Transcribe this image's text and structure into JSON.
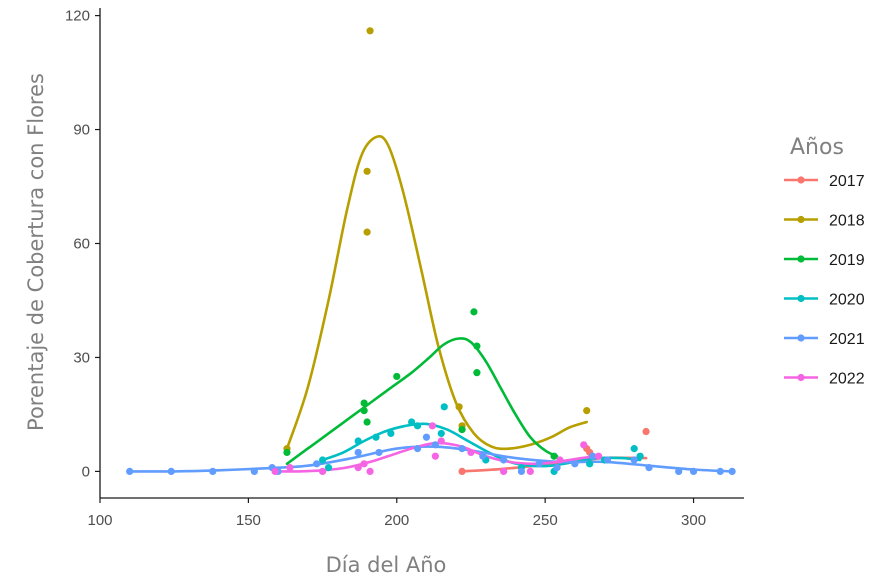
{
  "chart_data": {
    "type": "scatter",
    "title": "",
    "xlabel": "Día del Año",
    "ylabel": "Porentaje de Cobertura con Flores",
    "xlim": [
      100,
      317
    ],
    "ylim": [
      -7,
      122
    ],
    "xticks": [
      100,
      150,
      200,
      250,
      300
    ],
    "yticks": [
      0,
      30,
      60,
      90,
      120
    ],
    "grid": false,
    "legend": {
      "title": "Años",
      "position": "right"
    },
    "series": [
      {
        "name": "2017",
        "color": "#F8766D",
        "points": [
          [
            222,
            0
          ],
          [
            264,
            6
          ],
          [
            265,
            5
          ],
          [
            284,
            10.5
          ]
        ],
        "smooth": [
          [
            222,
            0
          ],
          [
            235,
            0.6
          ],
          [
            250,
            1.8
          ],
          [
            263,
            3
          ],
          [
            272,
            3.6
          ],
          [
            284,
            3.5
          ]
        ]
      },
      {
        "name": "2018",
        "color": "#B79F00",
        "points": [
          [
            163,
            6
          ],
          [
            190,
            79
          ],
          [
            190,
            63
          ],
          [
            191,
            116
          ],
          [
            221,
            17
          ],
          [
            222,
            12
          ],
          [
            264,
            16
          ]
        ],
        "smooth": [
          [
            163,
            6
          ],
          [
            170,
            22
          ],
          [
            177,
            45
          ],
          [
            183,
            68
          ],
          [
            188,
            83
          ],
          [
            193,
            88
          ],
          [
            197,
            86
          ],
          [
            202,
            74
          ],
          [
            208,
            54
          ],
          [
            214,
            33
          ],
          [
            220,
            18
          ],
          [
            226,
            10
          ],
          [
            232,
            6.5
          ],
          [
            238,
            6
          ],
          [
            245,
            7
          ],
          [
            252,
            9
          ],
          [
            258,
            11.5
          ],
          [
            264,
            13
          ]
        ]
      },
      {
        "name": "2019",
        "color": "#00BA38",
        "points": [
          [
            163,
            5
          ],
          [
            189,
            18
          ],
          [
            189,
            16
          ],
          [
            190,
            13
          ],
          [
            200,
            25
          ],
          [
            222,
            11
          ],
          [
            226,
            42
          ],
          [
            227,
            33
          ],
          [
            227,
            26
          ],
          [
            253,
            4
          ]
        ],
        "smooth": [
          [
            163,
            2
          ],
          [
            170,
            6
          ],
          [
            177,
            10
          ],
          [
            184,
            14
          ],
          [
            191,
            18
          ],
          [
            198,
            22
          ],
          [
            205,
            26
          ],
          [
            211,
            30
          ],
          [
            216,
            33.5
          ],
          [
            221,
            35
          ],
          [
            225,
            34
          ],
          [
            230,
            29
          ],
          [
            235,
            22
          ],
          [
            240,
            15
          ],
          [
            245,
            9
          ],
          [
            250,
            5.5
          ],
          [
            254,
            4
          ]
        ]
      },
      {
        "name": "2020",
        "color": "#00BFC4",
        "points": [
          [
            175,
            3
          ],
          [
            177,
            1
          ],
          [
            187,
            8
          ],
          [
            193,
            9
          ],
          [
            198,
            10
          ],
          [
            205,
            13
          ],
          [
            207,
            12
          ],
          [
            215,
            10
          ],
          [
            216,
            17
          ],
          [
            230,
            3
          ],
          [
            242,
            1
          ],
          [
            253,
            0
          ],
          [
            265,
            2
          ],
          [
            270,
            3
          ],
          [
            280,
            6
          ],
          [
            282,
            4
          ]
        ],
        "smooth": [
          [
            175,
            3
          ],
          [
            182,
            5
          ],
          [
            189,
            8
          ],
          [
            196,
            10.5
          ],
          [
            203,
            12
          ],
          [
            210,
            12.5
          ],
          [
            217,
            11
          ],
          [
            224,
            8
          ],
          [
            231,
            5
          ],
          [
            238,
            2.5
          ],
          [
            245,
            1.5
          ],
          [
            252,
            1.5
          ],
          [
            260,
            2.5
          ],
          [
            268,
            3.5
          ],
          [
            276,
            3.5
          ],
          [
            282,
            3
          ]
        ]
      },
      {
        "name": "2021",
        "color": "#619CFF",
        "points": [
          [
            110,
            0
          ],
          [
            124,
            0
          ],
          [
            138,
            0
          ],
          [
            152,
            0
          ],
          [
            158,
            1
          ],
          [
            160,
            0
          ],
          [
            173,
            2
          ],
          [
            187,
            5
          ],
          [
            194,
            5
          ],
          [
            207,
            6
          ],
          [
            210,
            9
          ],
          [
            213,
            7
          ],
          [
            222,
            6
          ],
          [
            229,
            4
          ],
          [
            236,
            3
          ],
          [
            242,
            0
          ],
          [
            248,
            2
          ],
          [
            254,
            1
          ],
          [
            260,
            2
          ],
          [
            266,
            4
          ],
          [
            271,
            3
          ],
          [
            280,
            3
          ],
          [
            285,
            1
          ],
          [
            295,
            0
          ],
          [
            300,
            0
          ],
          [
            309,
            0
          ],
          [
            313,
            0
          ]
        ],
        "smooth": [
          [
            110,
            0
          ],
          [
            125,
            0
          ],
          [
            140,
            0.3
          ],
          [
            155,
            0.8
          ],
          [
            170,
            1.5
          ],
          [
            185,
            3.5
          ],
          [
            200,
            6
          ],
          [
            213,
            6.5
          ],
          [
            225,
            5.5
          ],
          [
            240,
            3.5
          ],
          [
            255,
            2.5
          ],
          [
            270,
            2.5
          ],
          [
            285,
            1.5
          ],
          [
            300,
            0.5
          ],
          [
            313,
            0
          ]
        ]
      },
      {
        "name": "2022",
        "color": "#F564E3",
        "points": [
          [
            159,
            0
          ],
          [
            164,
            1
          ],
          [
            175,
            0
          ],
          [
            187,
            1
          ],
          [
            189,
            2
          ],
          [
            191,
            0
          ],
          [
            212,
            12
          ],
          [
            213,
            4
          ],
          [
            215,
            8
          ],
          [
            225,
            5
          ],
          [
            236,
            0
          ],
          [
            245,
            0
          ],
          [
            255,
            3
          ],
          [
            263,
            7
          ],
          [
            268,
            4
          ]
        ],
        "smooth": [
          [
            159,
            0
          ],
          [
            167,
            0
          ],
          [
            175,
            0.3
          ],
          [
            183,
            1
          ],
          [
            191,
            2.5
          ],
          [
            199,
            4.5
          ],
          [
            207,
            6.5
          ],
          [
            214,
            7.5
          ],
          [
            222,
            6.5
          ],
          [
            230,
            4
          ],
          [
            238,
            2.5
          ],
          [
            246,
            2
          ],
          [
            254,
            2.5
          ],
          [
            262,
            3.5
          ],
          [
            268,
            4
          ]
        ]
      }
    ]
  }
}
